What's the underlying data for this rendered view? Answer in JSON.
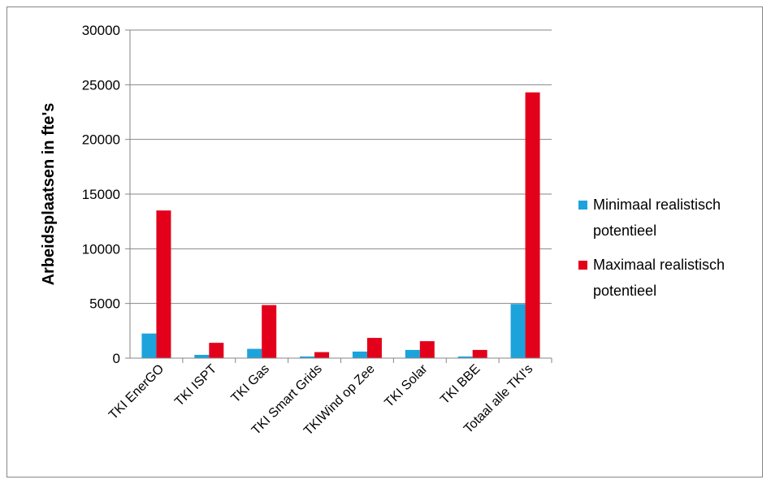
{
  "chart_data": {
    "type": "bar",
    "title": "",
    "xlabel": "",
    "ylabel": "Arbeidsplaatsen in fte's",
    "ylim": [
      0,
      30000
    ],
    "yticks": [
      0,
      5000,
      10000,
      15000,
      20000,
      25000,
      30000
    ],
    "grid": true,
    "legend_position": "right",
    "categories": [
      "TKI EnerGO",
      "TKI ISPT",
      "TKI Gas",
      "TKI Smart Grids",
      "TKIWind op Zee",
      "TKI Solar",
      "TKI BBE",
      "Totaal alle TKI's"
    ],
    "series": [
      {
        "name": "Minimaal realistisch potentieel",
        "legend_lines": [
          "Minimaal realistisch",
          "potentieel"
        ],
        "color": "#1ca3dc",
        "values": [
          2250,
          300,
          850,
          150,
          600,
          750,
          150,
          4950
        ]
      },
      {
        "name": "Maximaal realistisch potentieel",
        "legend_lines": [
          "Maximaal realistisch",
          "potentieel"
        ],
        "color": "#e3001b",
        "values": [
          13500,
          1400,
          4850,
          550,
          1850,
          1550,
          750,
          24300
        ]
      }
    ]
  }
}
